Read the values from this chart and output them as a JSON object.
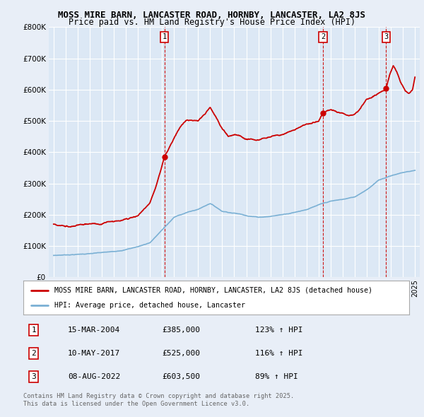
{
  "title1": "MOSS MIRE BARN, LANCASTER ROAD, HORNBY, LANCASTER, LA2 8JS",
  "title2": "Price paid vs. HM Land Registry's House Price Index (HPI)",
  "background_color": "#e8eef7",
  "plot_bg_color": "#dce8f5",
  "grid_color": "#ffffff",
  "red_line_color": "#cc0000",
  "blue_line_color": "#7ab0d4",
  "ylim": [
    0,
    800000
  ],
  "yticks": [
    0,
    100000,
    200000,
    300000,
    400000,
    500000,
    600000,
    700000,
    800000
  ],
  "ytick_labels": [
    "£0",
    "£100K",
    "£200K",
    "£300K",
    "£400K",
    "£500K",
    "£600K",
    "£700K",
    "£800K"
  ],
  "xlim_start": 1994.6,
  "xlim_end": 2025.4,
  "sale_dates": [
    2004.2,
    2017.37,
    2022.6
  ],
  "sale_prices": [
    385000,
    525000,
    603500
  ],
  "sale_labels": [
    "1",
    "2",
    "3"
  ],
  "vline_color": "#cc0000",
  "legend_line1": "MOSS MIRE BARN, LANCASTER ROAD, HORNBY, LANCASTER, LA2 8JS (detached house)",
  "legend_line2": "HPI: Average price, detached house, Lancaster",
  "table_rows": [
    [
      "1",
      "15-MAR-2004",
      "£385,000",
      "123% ↑ HPI"
    ],
    [
      "2",
      "10-MAY-2017",
      "£525,000",
      "116% ↑ HPI"
    ],
    [
      "3",
      "08-AUG-2022",
      "£603,500",
      "89% ↑ HPI"
    ]
  ],
  "footnote": "Contains HM Land Registry data © Crown copyright and database right 2025.\nThis data is licensed under the Open Government Licence v3.0."
}
